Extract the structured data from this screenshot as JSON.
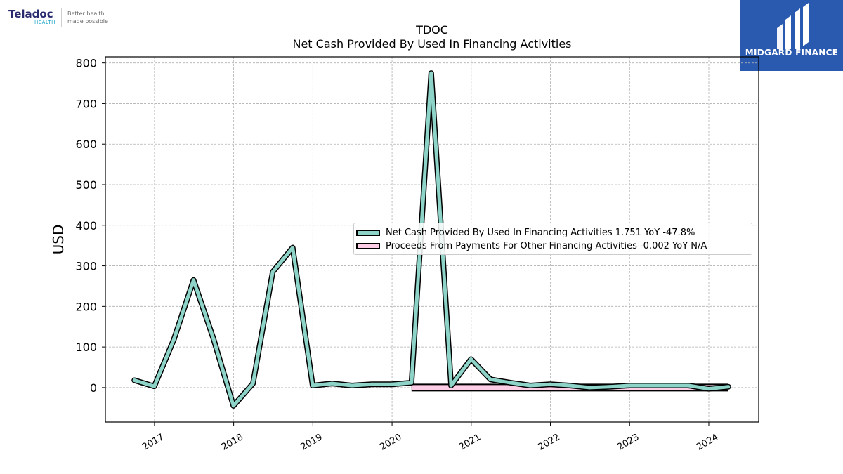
{
  "brand": {
    "name": "Teladoc",
    "sub": "HEALTH",
    "tagline_1": "Better health",
    "tagline_2": "made possible"
  },
  "badge": {
    "text": "MIDGARD FINANCE",
    "icon": "midgard-logo-icon",
    "color": "#2a59b0"
  },
  "chart_data": {
    "type": "line",
    "title": "TDOC",
    "subtitle": "Net Cash Provided By Used In Financing Activities",
    "xlabel": "",
    "ylabel": "USD",
    "ylim": [
      -85,
      815
    ],
    "xlim": [
      2016.38,
      2024.63
    ],
    "x_ticks": [
      "2017",
      "2018",
      "2019",
      "2020",
      "2021",
      "2022",
      "2023",
      "2024"
    ],
    "y_ticks": [
      "0",
      "100",
      "200",
      "300",
      "400",
      "500",
      "600",
      "700",
      "800"
    ],
    "grid": true,
    "legend_position": "center-right",
    "series": [
      {
        "name": "Net Cash Provided By Used In Financing Activities  1.751 YoY -47.8%",
        "color": "#8dd3c7",
        "x": [
          "2016-09-30",
          "2016-12-31",
          "2017-03-31",
          "2017-06-30",
          "2017-09-30",
          "2017-12-31",
          "2018-03-31",
          "2018-06-30",
          "2018-09-30",
          "2018-12-31",
          "2019-03-31",
          "2019-06-30",
          "2019-09-30",
          "2019-12-31",
          "2020-03-31",
          "2020-06-30",
          "2020-09-30",
          "2020-12-31",
          "2021-03-31",
          "2021-06-30",
          "2021-09-30",
          "2021-12-31",
          "2022-03-31",
          "2022-06-30",
          "2022-09-30",
          "2022-12-31",
          "2023-03-31",
          "2023-06-30",
          "2023-09-30",
          "2023-12-31",
          "2024-03-31"
        ],
        "values": [
          18,
          3,
          118,
          265,
          120,
          -45,
          10,
          285,
          345,
          5,
          10,
          5,
          8,
          8,
          12,
          775,
          5,
          70,
          20,
          12,
          5,
          8,
          5,
          0,
          2,
          5,
          5,
          5,
          5,
          -3,
          2
        ]
      },
      {
        "name": "Proceeds From Payments For Other Financing Activities  -0.002 YoY N/A",
        "color": "#fccde5",
        "x": [
          "2020-03-31",
          "2024-03-31"
        ],
        "values": [
          0,
          0
        ]
      }
    ]
  }
}
